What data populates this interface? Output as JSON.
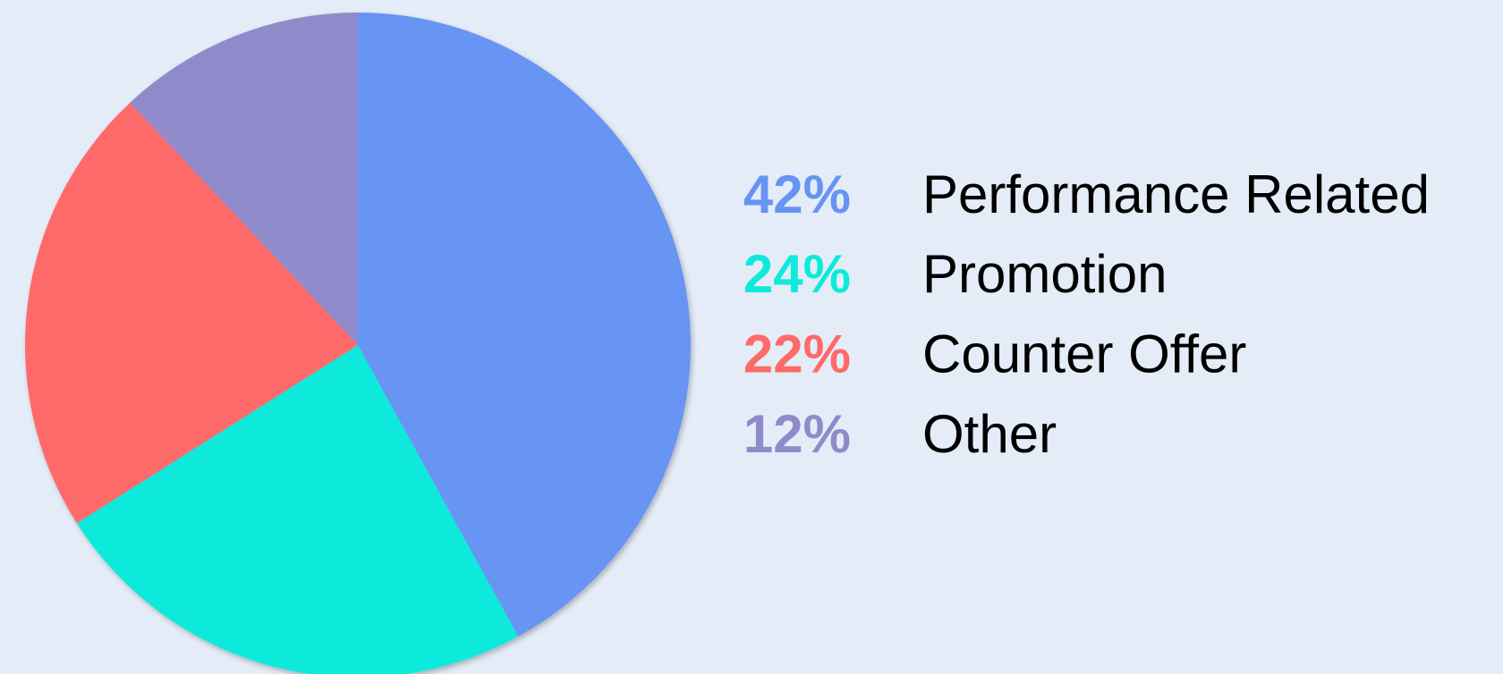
{
  "chart_data": {
    "type": "pie",
    "categories": [
      "Performance Related",
      "Promotion",
      "Counter Offer",
      "Other"
    ],
    "values": [
      42,
      24,
      22,
      12
    ],
    "value_labels": [
      "42%",
      "24%",
      "22%",
      "12%"
    ],
    "colors": [
      "#6794f3",
      "#0deadb",
      "#fe6a6a",
      "#8f8bcb"
    ]
  }
}
